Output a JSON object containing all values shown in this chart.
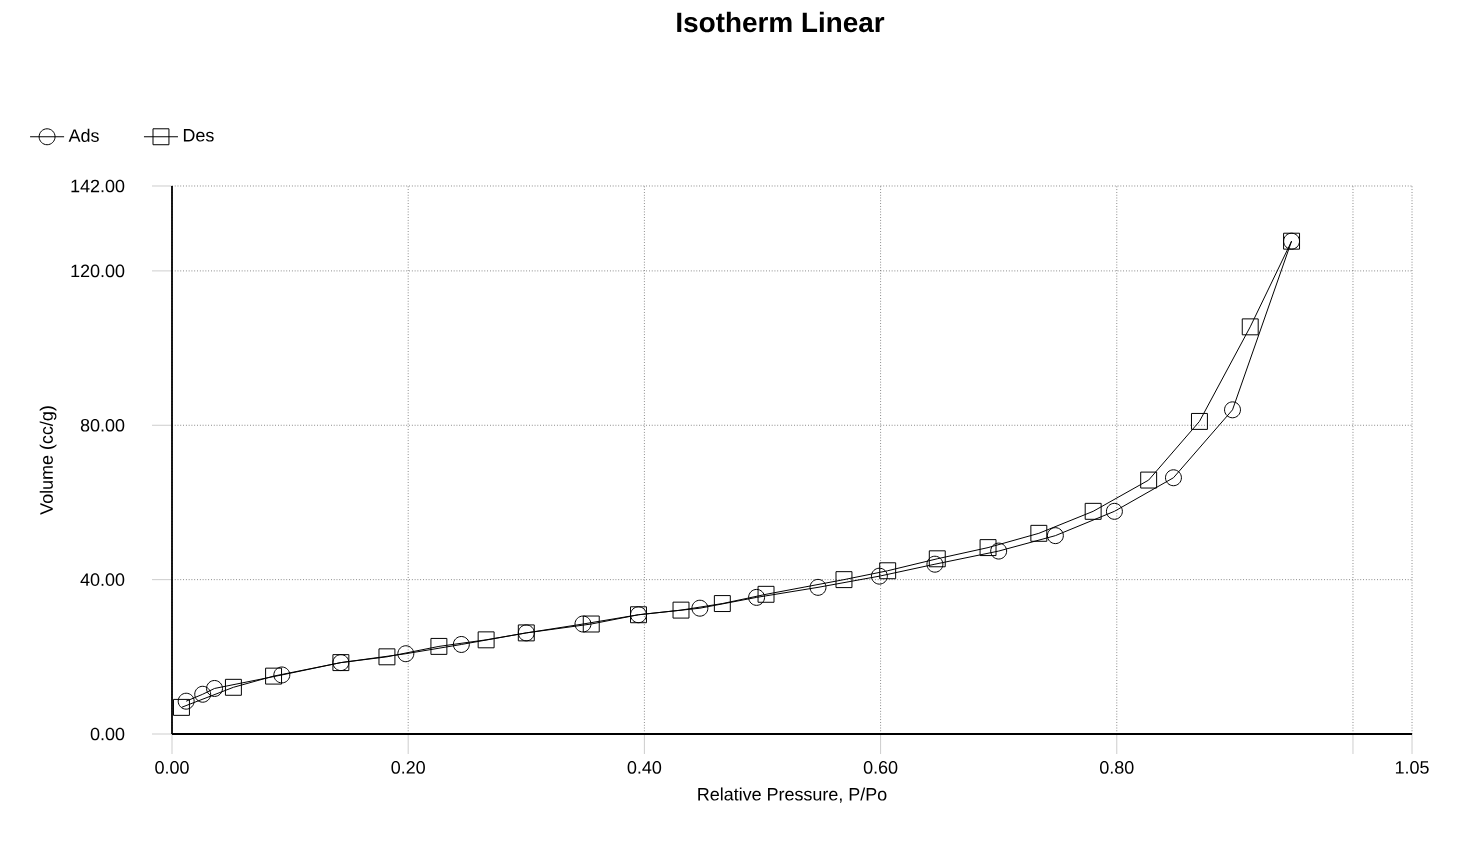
{
  "chart_data": {
    "type": "line",
    "title": "Isotherm Linear",
    "xlabel": "Relative Pressure, P/Po",
    "ylabel": "Volume (cc/g)",
    "xlim": [
      0,
      1.05
    ],
    "ylim": [
      0,
      142
    ],
    "xticks": [
      {
        "value": 0,
        "label": "0.00"
      },
      {
        "value": 0.2,
        "label": "0.20"
      },
      {
        "value": 0.4,
        "label": "0.40"
      },
      {
        "value": 0.6,
        "label": "0.60"
      },
      {
        "value": 0.8,
        "label": "0.80"
      },
      {
        "value": 1.0,
        "label": null
      },
      {
        "value": 1.05,
        "label": "1.05"
      }
    ],
    "yticks": [
      {
        "value": 0,
        "label": "0.00"
      },
      {
        "value": 40,
        "label": "40.00"
      },
      {
        "value": 80,
        "label": "80.00"
      },
      {
        "value": 120,
        "label": "120.00"
      },
      {
        "value": 142,
        "label": "142.00"
      }
    ],
    "grid": true,
    "legend": "top left",
    "line_style": "solid",
    "series": [
      {
        "name": "Ads",
        "color": "#000000",
        "marker": "circle",
        "x": [
          0.012,
          0.026,
          0.036,
          0.093,
          0.143,
          0.198,
          0.245,
          0.3,
          0.348,
          0.395,
          0.447,
          0.495,
          0.547,
          0.599,
          0.646,
          0.7,
          0.748,
          0.798,
          0.848,
          0.898,
          0.948
        ],
        "values": [
          8.5,
          10.3,
          11.8,
          15.3,
          18.5,
          20.8,
          23.2,
          26.2,
          28.5,
          30.9,
          32.6,
          35.4,
          38,
          40.9,
          44,
          47.4,
          51.4,
          57.7,
          66.4,
          84,
          127.7
        ]
      },
      {
        "name": "Des",
        "color": "#000000",
        "marker": "square",
        "x": [
          0.008,
          0.052,
          0.086,
          0.143,
          0.182,
          0.226,
          0.266,
          0.3,
          0.355,
          0.395,
          0.431,
          0.466,
          0.503,
          0.569,
          0.606,
          0.648,
          0.691,
          0.734,
          0.78,
          0.827,
          0.87,
          0.913,
          0.948
        ],
        "values": [
          6.9,
          12.1,
          15,
          18.5,
          20,
          22.7,
          24.4,
          26.2,
          28.5,
          30.9,
          32.1,
          33.8,
          36.2,
          40,
          42.3,
          45.4,
          48.3,
          52,
          57.7,
          65.8,
          81,
          105.5,
          127.7
        ]
      }
    ]
  }
}
